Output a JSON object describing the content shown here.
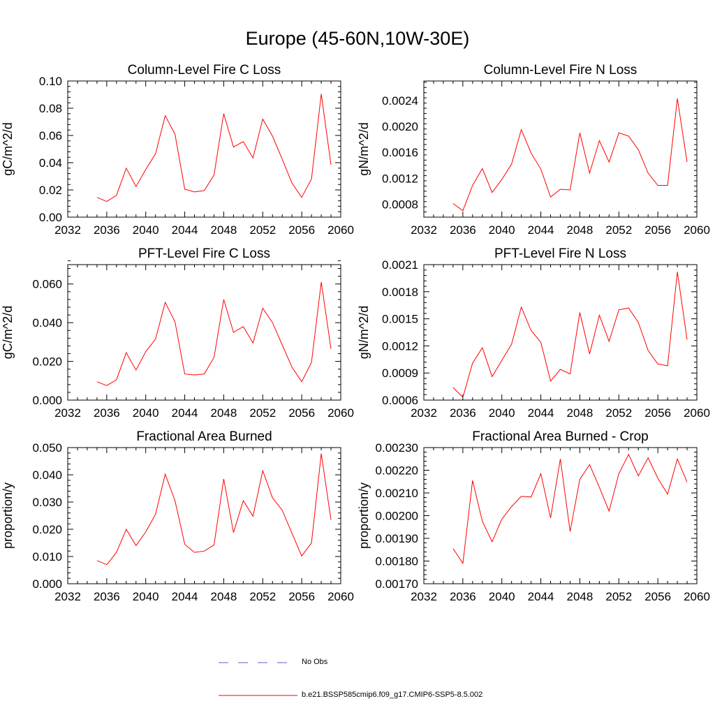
{
  "figure_title": "Europe (45-60N,10W-30E)",
  "colors": {
    "model": "#ff0000",
    "obs": "#5a5ad8",
    "axis": "#000000"
  },
  "legend": [
    {
      "label": "No Obs",
      "style": "dashed",
      "color": "#5a5ad8"
    },
    {
      "label": "b.e21.BSSP585cmip6.f09_g17.CMIP6-SSP5-8.5.002",
      "style": "solid",
      "color": "#ff0000"
    }
  ],
  "chart_data": [
    {
      "type": "line",
      "title": "Column-Level Fire C Loss",
      "ylabel": "gC/m^2/d",
      "xlim": [
        2032,
        2060
      ],
      "xticks": [
        "2032",
        "2036",
        "2040",
        "2044",
        "2048",
        "2052",
        "2056",
        "2060"
      ],
      "ylim": [
        0,
        0.1
      ],
      "yticks": [
        "0.00",
        "0.02",
        "0.04",
        "0.06",
        "0.08",
        "0.10"
      ],
      "x": [
        2035,
        2036,
        2037,
        2038,
        2039,
        2040,
        2041,
        2042,
        2043,
        2044,
        2045,
        2046,
        2047,
        2048,
        2049,
        2050,
        2051,
        2052,
        2053,
        2054,
        2055,
        2056,
        2057,
        2058,
        2059
      ],
      "values": [
        0.0145,
        0.0115,
        0.016,
        0.036,
        0.0225,
        0.035,
        0.0465,
        0.0745,
        0.061,
        0.0205,
        0.0185,
        0.0195,
        0.031,
        0.076,
        0.0515,
        0.0555,
        0.0435,
        0.072,
        0.0595,
        0.0425,
        0.025,
        0.0145,
        0.028,
        0.0905,
        0.0385
      ]
    },
    {
      "type": "line",
      "title": "Column-Level Fire N Loss",
      "ylabel": "gN/m^2/d",
      "xlim": [
        2032,
        2060
      ],
      "xticks": [
        "2032",
        "2036",
        "2040",
        "2044",
        "2048",
        "2052",
        "2056",
        "2060"
      ],
      "ylim": [
        0.0006,
        0.0027
      ],
      "yticks": [
        "0.0008",
        "0.0012",
        "0.0016",
        "0.0020",
        "0.0024"
      ],
      "ytick_values": [
        0.0008,
        0.0012,
        0.0016,
        0.002,
        0.0024
      ],
      "x": [
        2035,
        2036,
        2037,
        2038,
        2039,
        2040,
        2041,
        2042,
        2043,
        2044,
        2045,
        2046,
        2047,
        2048,
        2049,
        2050,
        2051,
        2052,
        2053,
        2054,
        2055,
        2056,
        2057,
        2058,
        2059
      ],
      "values": [
        0.00081,
        0.0007,
        0.00109,
        0.00135,
        0.00098,
        0.00118,
        0.00142,
        0.00195,
        0.00159,
        0.00134,
        0.00091,
        0.00103,
        0.00102,
        0.0019,
        0.00128,
        0.00178,
        0.00145,
        0.0019,
        0.00185,
        0.00164,
        0.00128,
        0.00109,
        0.00109,
        0.00243,
        0.00145
      ]
    },
    {
      "type": "line",
      "title": "PFT-Level Fire C Loss",
      "ylabel": "gC/m^2/d",
      "xlim": [
        2032,
        2060
      ],
      "xticks": [
        "2032",
        "2036",
        "2040",
        "2044",
        "2048",
        "2052",
        "2056",
        "2060"
      ],
      "ylim": [
        0,
        0.07
      ],
      "yticks": [
        "0.000",
        "0.020",
        "0.040",
        "0.060"
      ],
      "ytick_values": [
        0,
        0.02,
        0.04,
        0.06
      ],
      "x": [
        2035,
        2036,
        2037,
        2038,
        2039,
        2040,
        2041,
        2042,
        2043,
        2044,
        2045,
        2046,
        2047,
        2048,
        2049,
        2050,
        2051,
        2052,
        2053,
        2054,
        2055,
        2056,
        2057,
        2058,
        2059
      ],
      "values": [
        0.0095,
        0.0075,
        0.0105,
        0.0245,
        0.0155,
        0.025,
        0.0315,
        0.0505,
        0.0405,
        0.0135,
        0.013,
        0.0135,
        0.022,
        0.052,
        0.035,
        0.038,
        0.0295,
        0.0475,
        0.04,
        0.0285,
        0.017,
        0.0095,
        0.0195,
        0.061,
        0.0265
      ]
    },
    {
      "type": "line",
      "title": "PFT-Level Fire N Loss",
      "ylabel": "gN/m^2/d",
      "xlim": [
        2032,
        2060
      ],
      "xticks": [
        "2032",
        "2036",
        "2040",
        "2044",
        "2048",
        "2052",
        "2056",
        "2060"
      ],
      "ylim": [
        0.0006,
        0.0021
      ],
      "yticks": [
        "0.0006",
        "0.0009",
        "0.0012",
        "0.0015",
        "0.0018",
        "0.0021"
      ],
      "ytick_values": [
        0.0006,
        0.0009,
        0.0012,
        0.0015,
        0.0018,
        0.0021
      ],
      "x": [
        2035,
        2036,
        2037,
        2038,
        2039,
        2040,
        2041,
        2042,
        2043,
        2044,
        2045,
        2046,
        2047,
        2048,
        2049,
        2050,
        2051,
        2052,
        2053,
        2054,
        2055,
        2056,
        2057,
        2058,
        2059
      ],
      "values": [
        0.00074,
        0.00063,
        0.00101,
        0.00118,
        0.00086,
        0.00104,
        0.00122,
        0.00163,
        0.00137,
        0.00124,
        0.00081,
        0.00094,
        0.00089,
        0.00157,
        0.00111,
        0.00154,
        0.00125,
        0.0016,
        0.00162,
        0.00146,
        0.00115,
        0.001,
        0.00098,
        0.00202,
        0.00127
      ]
    },
    {
      "type": "line",
      "title": "Fractional Area Burned",
      "ylabel": "proportion/y",
      "xlim": [
        2032,
        2060
      ],
      "xticks": [
        "2032",
        "2036",
        "2040",
        "2044",
        "2048",
        "2052",
        "2056",
        "2060"
      ],
      "ylim": [
        0,
        0.05
      ],
      "yticks": [
        "0.000",
        "0.010",
        "0.020",
        "0.030",
        "0.040",
        "0.050"
      ],
      "ytick_values": [
        0,
        0.01,
        0.02,
        0.03,
        0.04,
        0.05
      ],
      "x": [
        2035,
        2036,
        2037,
        2038,
        2039,
        2040,
        2041,
        2042,
        2043,
        2044,
        2045,
        2046,
        2047,
        2048,
        2049,
        2050,
        2051,
        2052,
        2053,
        2054,
        2055,
        2056,
        2057,
        2058,
        2059
      ],
      "values": [
        0.0085,
        0.007,
        0.0115,
        0.02,
        0.014,
        0.019,
        0.0255,
        0.0402,
        0.0305,
        0.0145,
        0.0115,
        0.012,
        0.0142,
        0.0385,
        0.0188,
        0.0305,
        0.0248,
        0.0415,
        0.0315,
        0.027,
        0.0185,
        0.0102,
        0.015,
        0.0478,
        0.0235
      ]
    },
    {
      "type": "line",
      "title": "Fractional Area Burned - Crop",
      "ylabel": "proportion/y",
      "xlim": [
        2032,
        2060
      ],
      "xticks": [
        "2032",
        "2036",
        "2040",
        "2044",
        "2048",
        "2052",
        "2056",
        "2060"
      ],
      "ylim": [
        0.0017,
        0.0023
      ],
      "yticks": [
        "0.00170",
        "0.00180",
        "0.00190",
        "0.00200",
        "0.00210",
        "0.00220",
        "0.00230"
      ],
      "ytick_values": [
        0.0017,
        0.0018,
        0.0019,
        0.002,
        0.0021,
        0.0022,
        0.0023
      ],
      "x": [
        2035,
        2036,
        2037,
        2038,
        2039,
        2040,
        2041,
        2042,
        2043,
        2044,
        2045,
        2046,
        2047,
        2048,
        2049,
        2050,
        2051,
        2052,
        2053,
        2054,
        2055,
        2056,
        2057,
        2058,
        2059
      ],
      "values": [
        0.001855,
        0.00179,
        0.002155,
        0.001975,
        0.001885,
        0.001985,
        0.00204,
        0.002085,
        0.002082,
        0.002185,
        0.00199,
        0.00225,
        0.00193,
        0.00216,
        0.002225,
        0.002125,
        0.00202,
        0.002185,
        0.00227,
        0.002175,
        0.002255,
        0.002165,
        0.002095,
        0.00225,
        0.002148
      ]
    }
  ]
}
